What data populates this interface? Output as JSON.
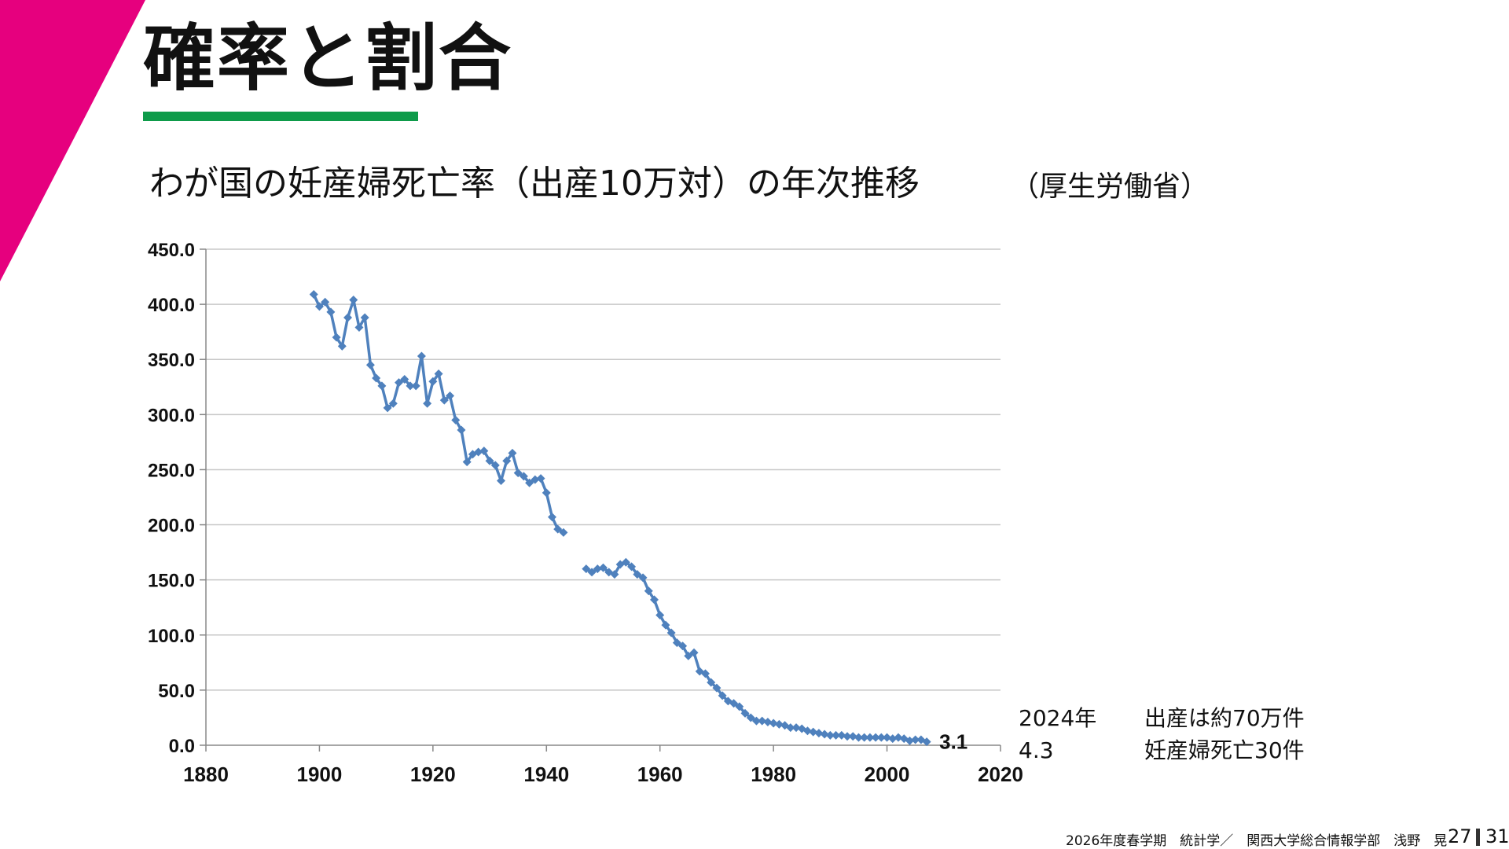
{
  "title": "確率と割合",
  "subtitle": "わが国の妊産婦死亡率（出産10万対）の年次推移",
  "source": "（厚生労働省）",
  "colors": {
    "accent_pink": "#e6007e",
    "accent_green": "#0e9b4a",
    "series": "#4f81bd"
  },
  "notes": {
    "year": "2024年",
    "value": "4.3",
    "births": "出産は約70万件",
    "deaths": "妊産婦死亡30件"
  },
  "footer": "2026年度春学期　統計学／　関西大学総合情報学部　浅野　晃",
  "page": {
    "current": "27",
    "total": "31"
  },
  "chart_data": {
    "type": "line",
    "xlim": [
      1880,
      2020
    ],
    "ylim": [
      0,
      450
    ],
    "x_ticks": [
      "1880",
      "1900",
      "1920",
      "1940",
      "1960",
      "1980",
      "2000",
      "2020"
    ],
    "y_ticks": [
      "0.0",
      "50.0",
      "100.0",
      "150.0",
      "200.0",
      "250.0",
      "300.0",
      "350.0",
      "400.0",
      "450.0"
    ],
    "grid": true,
    "data_label": {
      "x": 2007,
      "y": 3.1,
      "text": "3.1"
    },
    "series": [
      {
        "x": [
          1899,
          1900,
          1901,
          1902,
          1903,
          1904,
          1905,
          1906,
          1907,
          1908,
          1909,
          1910,
          1911,
          1912,
          1913,
          1914,
          1915,
          1916,
          1917,
          1918,
          1919,
          1920,
          1921,
          1922,
          1923,
          1924,
          1925,
          1926,
          1927,
          1928,
          1929,
          1930,
          1931,
          1932,
          1933,
          1934,
          1935,
          1936,
          1937,
          1938,
          1939,
          1940,
          1941,
          1942,
          1943
        ],
        "y": [
          409,
          398,
          402,
          393,
          370,
          362,
          388,
          404,
          379,
          388,
          345,
          333,
          326,
          306,
          310,
          329,
          332,
          326,
          326,
          353,
          310,
          330,
          337,
          313,
          317,
          295,
          286,
          257,
          264,
          266,
          267,
          258,
          254,
          240,
          258,
          265,
          247,
          244,
          238,
          241,
          242,
          229,
          207,
          196,
          193
        ]
      },
      {
        "x": [
          1947,
          1948,
          1949,
          1950,
          1951,
          1952,
          1953,
          1954,
          1955,
          1956,
          1957,
          1958,
          1959,
          1960,
          1961,
          1962,
          1963,
          1964,
          1965,
          1966,
          1967,
          1968,
          1969,
          1970,
          1971,
          1972,
          1973,
          1974,
          1975,
          1976,
          1977,
          1978,
          1979,
          1980,
          1981,
          1982,
          1983,
          1984,
          1985,
          1986,
          1987,
          1988,
          1989,
          1990,
          1991,
          1992,
          1993,
          1994,
          1995,
          1996,
          1997,
          1998,
          1999,
          2000,
          2001,
          2002,
          2003,
          2004,
          2005,
          2006,
          2007
        ],
        "y": [
          160,
          157,
          160,
          161,
          157,
          155,
          164,
          166,
          162,
          155,
          152,
          140,
          132,
          118,
          109,
          102,
          93,
          90,
          81,
          84,
          67,
          65,
          57,
          52,
          45,
          40,
          38,
          35,
          29,
          25,
          22,
          22,
          21,
          20,
          19,
          18,
          16,
          16,
          15,
          13,
          12,
          11,
          10,
          9,
          9,
          9,
          8,
          8,
          7,
          7,
          7,
          7,
          7,
          7,
          6,
          7,
          6,
          4,
          5,
          5,
          3.1
        ]
      }
    ]
  }
}
